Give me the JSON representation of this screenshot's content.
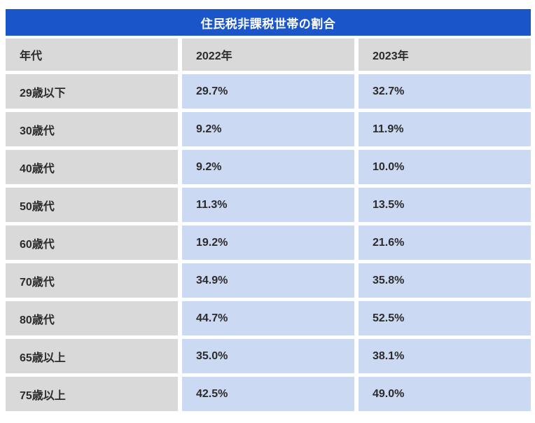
{
  "title": "住民税非課税世帯の割合",
  "colors": {
    "header_blue": "#1a56c9",
    "label_gray": "#d9d9d9",
    "value_light_blue": "#cbd9f3",
    "text_dark": "#2b2b2b",
    "title_text": "#ffffff"
  },
  "table": {
    "columns": [
      "年代",
      "2022年",
      "2023年"
    ],
    "rows": [
      {
        "label": "29歳以下",
        "values": [
          "29.7%",
          "32.7%"
        ]
      },
      {
        "label": "30歳代",
        "values": [
          "9.2%",
          "11.9%"
        ]
      },
      {
        "label": "40歳代",
        "values": [
          "9.2%",
          "10.0%"
        ]
      },
      {
        "label": "50歳代",
        "values": [
          "11.3%",
          "13.5%"
        ]
      },
      {
        "label": "60歳代",
        "values": [
          "19.2%",
          "21.6%"
        ]
      },
      {
        "label": "70歳代",
        "values": [
          "34.9%",
          "35.8%"
        ]
      },
      {
        "label": "80歳代",
        "values": [
          "44.7%",
          "52.5%"
        ]
      },
      {
        "label": "65歳以上",
        "values": [
          "35.0%",
          "38.1%"
        ]
      },
      {
        "label": "75歳以上",
        "values": [
          "42.5%",
          "49.0%"
        ]
      }
    ]
  },
  "chart_data": {
    "type": "table",
    "title": "住民税非課税世帯の割合",
    "categories": [
      "29歳以下",
      "30歳代",
      "40歳代",
      "50歳代",
      "60歳代",
      "70歳代",
      "80歳代",
      "65歳以上",
      "75歳以上"
    ],
    "series": [
      {
        "name": "2022年",
        "values": [
          29.7,
          9.2,
          9.2,
          11.3,
          19.2,
          34.9,
          44.7,
          35.0,
          42.5
        ]
      },
      {
        "name": "2023年",
        "values": [
          32.7,
          11.9,
          10.0,
          13.5,
          21.6,
          35.8,
          52.5,
          38.1,
          49.0
        ]
      }
    ],
    "unit": "%"
  }
}
